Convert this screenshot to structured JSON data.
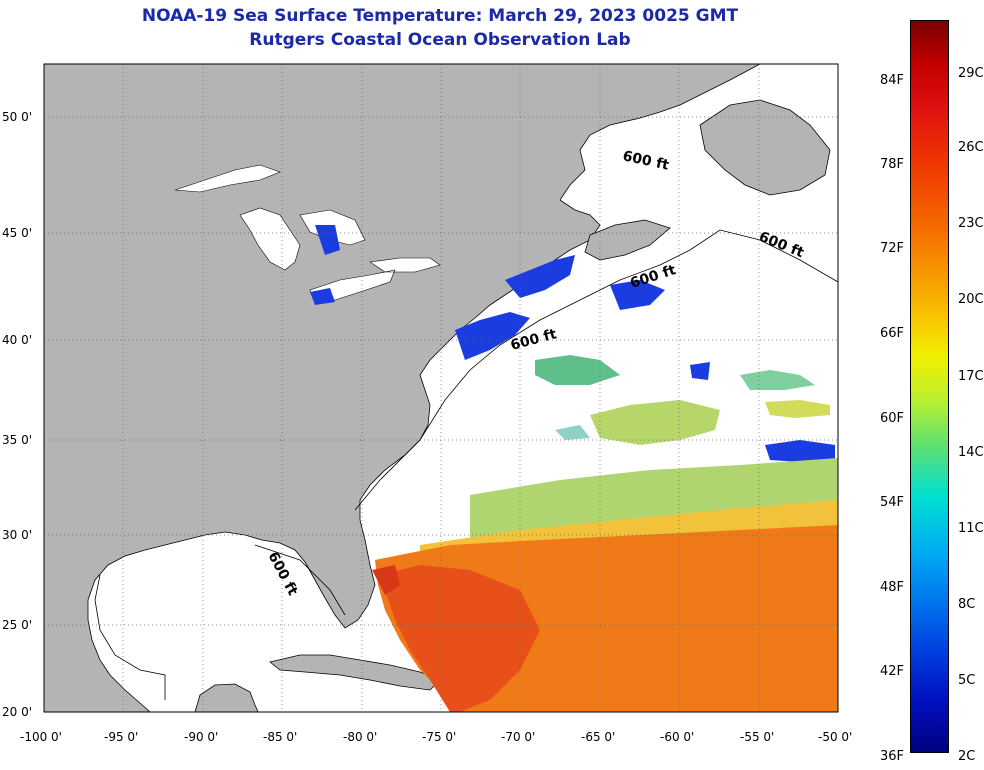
{
  "title": {
    "line1": "NOAA-19 Sea Surface Temperature:  March 29, 2023 0025 GMT",
    "line2": "Rutgers Coastal Ocean Observation Lab"
  },
  "lat_ticks": [
    "50 0'",
    "45 0'",
    "40 0'",
    "35 0'",
    "30 0'",
    "25 0'",
    "20 0'"
  ],
  "lon_ticks": [
    "-100 0'",
    "-95 0'",
    "-90 0'",
    "-85 0'",
    "-80 0'",
    "-75 0'",
    "-70 0'",
    "-65 0'",
    "-60 0'",
    "-55 0'",
    "-50 0'"
  ],
  "depth_contour_label": "600 ft",
  "colorbar": {
    "fahrenheit": [
      "84F",
      "78F",
      "72F",
      "66F",
      "60F",
      "54F",
      "48F",
      "42F",
      "36F"
    ],
    "celsius": [
      "29C",
      "26C",
      "23C",
      "20C",
      "17C",
      "14C",
      "11C",
      "8C",
      "5C",
      "2C"
    ]
  },
  "colors": {
    "land": "#b4b4b4",
    "ocean_nodata": "#ffffff",
    "title_blue": "#1c2aa8",
    "warm_water": "#f05a10",
    "cold_water": "#1a3ce0"
  }
}
